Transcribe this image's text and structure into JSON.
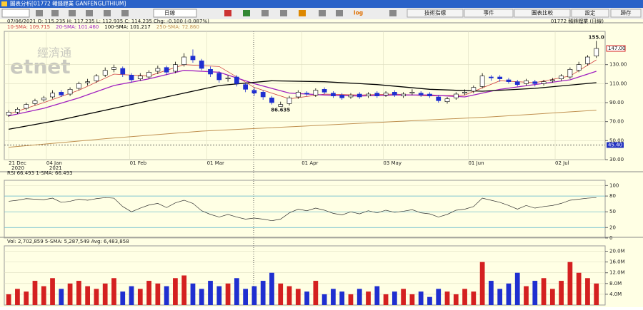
{
  "window": {
    "title": "圖表分析[01772 贛鋒鋰業 GANFENGLITHIUM]"
  },
  "toolbar": {
    "interval": "日線",
    "log": "log",
    "buttons": [
      "技術指標",
      "事件",
      "圖表比較",
      "設定",
      "歸存"
    ]
  },
  "watermark": [
    "經濟通",
    "etnet"
  ],
  "chart_data": [
    {
      "type": "candlestick",
      "info": "07/06/2021  O: 115.235  H: 117.235  L: 112.935  C: 114.235  Chg: -0.100 (-0.087%)",
      "symbol": "01772 贛鋒鋰業 (日線)",
      "down_color": "#1f2fd0",
      "up_color": "#ffffff",
      "xlim": [
        -0.5,
        68
      ],
      "ylim": [
        30,
        165
      ],
      "yticks": [
        {
          "value": 30,
          "label": "30.00"
        },
        {
          "value": 50,
          "label": "50.00"
        },
        {
          "value": 70,
          "label": "70.00"
        },
        {
          "value": 90,
          "label": "90.00"
        },
        {
          "value": 110,
          "label": "110.00"
        },
        {
          "value": 130,
          "label": "130.00"
        }
      ],
      "xticks": [
        {
          "value": 0,
          "label": "21 Dec"
        },
        {
          "value": 4.3,
          "label": "04 Jan"
        },
        {
          "value": 13.8,
          "label": "01 Feb"
        },
        {
          "value": 22.6,
          "label": "01 Mar"
        },
        {
          "value": 33.4,
          "label": "01 Apr"
        },
        {
          "value": 42.7,
          "label": "03 May"
        },
        {
          "value": 52.4,
          "label": "01 Jun"
        },
        {
          "value": 62.3,
          "label": "02 Jul"
        }
      ],
      "year_labels": [
        {
          "value": 0,
          "label": "2020"
        },
        {
          "value": 4.3,
          "label": "2021"
        }
      ],
      "last_price": {
        "value": 147,
        "label": "147.00"
      },
      "ref_line": {
        "value": 45.4,
        "label": "45.40"
      },
      "annotations": [
        {
          "x": 67,
          "value": 155,
          "label": "155.0"
        },
        {
          "x": 31,
          "value": 86.635,
          "label": "86.635"
        }
      ],
      "open": [
        77,
        80,
        84,
        89,
        93,
        96,
        101,
        99,
        105,
        111,
        113,
        119,
        125,
        126,
        119,
        115,
        117,
        123,
        127,
        123,
        130,
        139,
        134,
        125,
        121,
        115,
        117,
        109,
        103,
        101,
        95,
        86,
        89,
        96,
        100,
        98,
        104,
        100,
        98,
        96,
        99,
        97,
        100,
        98,
        101,
        97,
        100,
        100,
        99,
        96,
        91,
        95,
        100,
        102,
        107,
        117,
        117,
        114,
        112,
        110,
        112,
        110,
        113,
        115,
        117,
        124,
        131,
        139
      ],
      "high": [
        82,
        85,
        90,
        94,
        97,
        103,
        103,
        106,
        112,
        115,
        120,
        127,
        130,
        128,
        121,
        121,
        124,
        129,
        129,
        133,
        142,
        146,
        136,
        128,
        123,
        119,
        119,
        111,
        106,
        103,
        97,
        91,
        97,
        103,
        102,
        105,
        106,
        102,
        100,
        100,
        101,
        101,
        102,
        102,
        103,
        101,
        104,
        102,
        101,
        98,
        96,
        101,
        104,
        108,
        121,
        119,
        119,
        116,
        114,
        115,
        114,
        114,
        116,
        120,
        127,
        133,
        140,
        155
      ],
      "low": [
        75,
        78,
        82,
        87,
        91,
        94,
        96,
        97,
        103,
        108,
        111,
        117,
        122,
        117,
        111,
        113,
        115,
        120,
        119,
        121,
        128,
        132,
        124,
        117,
        111,
        112,
        107,
        101,
        97,
        93,
        88,
        86.635,
        87,
        94,
        97,
        96,
        99,
        95,
        93,
        94,
        94,
        95,
        95,
        96,
        96,
        95,
        98,
        96,
        95,
        90,
        89,
        93,
        98,
        100,
        105,
        113,
        112,
        110,
        107,
        108,
        107,
        108,
        111,
        113,
        115,
        122,
        129,
        137
      ],
      "close": [
        80,
        83,
        88,
        92,
        95,
        100,
        98,
        104,
        110,
        112,
        118,
        124,
        127,
        120,
        114,
        118,
        122,
        126,
        122,
        130,
        138,
        135,
        126,
        120,
        114,
        116,
        110,
        104,
        100,
        96,
        90,
        88,
        95,
        101,
        99,
        103,
        101,
        97,
        95,
        98,
        96,
        99,
        97,
        100,
        98,
        99,
        101,
        98,
        97,
        92,
        94,
        99,
        101,
        106,
        118,
        116,
        115,
        112,
        109,
        113,
        110,
        112,
        114,
        118,
        125,
        130,
        138,
        147
      ],
      "lines": [
        {
          "name": "10-SMA: 109.715",
          "color": "#d04040",
          "width": 0.8,
          "x": [
            0,
            4,
            8,
            12,
            16,
            20,
            24,
            28,
            32,
            36,
            40,
            44,
            48,
            52,
            56,
            60,
            64,
            67
          ],
          "values": [
            78,
            90,
            103,
            120,
            118,
            130,
            128,
            106,
            94,
            99,
            98,
            99,
            97,
            98,
            113,
            111,
            118,
            135
          ]
        },
        {
          "name": "20-SMA: 101.460",
          "color": "#a020c0",
          "width": 1.3,
          "x": [
            0,
            4,
            8,
            12,
            16,
            20,
            24,
            28,
            32,
            36,
            40,
            44,
            48,
            52,
            56,
            60,
            64,
            67
          ],
          "values": [
            76,
            84,
            95,
            108,
            115,
            124,
            122,
            110,
            100,
            98,
            97,
            98,
            98,
            96,
            104,
            109,
            114,
            123
          ]
        },
        {
          "name": "100-SMA: 101.217",
          "color": "#000000",
          "width": 1.3,
          "x": [
            0,
            6,
            12,
            18,
            24,
            30,
            36,
            42,
            48,
            54,
            60,
            67
          ],
          "values": [
            62,
            72,
            84,
            96,
            108,
            113,
            112,
            109,
            104,
            102,
            105,
            111
          ]
        },
        {
          "name": "250-SMA: 72.860",
          "color": "#c09050",
          "width": 1,
          "x": [
            0,
            11,
            22,
            33,
            44,
            55,
            67
          ],
          "values": [
            43,
            52,
            60,
            65,
            70,
            75,
            82
          ]
        }
      ]
    },
    {
      "type": "line",
      "info": "RSI 66.493  1-SMA: 66.493",
      "color": "#303030",
      "xlim": [
        -0.5,
        68
      ],
      "ylim": [
        0,
        110
      ],
      "yticks": [
        0,
        20,
        50,
        80,
        100
      ],
      "guides": [
        20,
        50,
        80
      ],
      "values": [
        70,
        72,
        75,
        74,
        73,
        76,
        68,
        70,
        74,
        72,
        75,
        77,
        76,
        60,
        50,
        57,
        63,
        66,
        58,
        67,
        72,
        66,
        52,
        45,
        40,
        45,
        40,
        36,
        38,
        36,
        33,
        36,
        48,
        55,
        52,
        57,
        53,
        47,
        44,
        50,
        46,
        52,
        48,
        53,
        49,
        51,
        54,
        48,
        46,
        40,
        45,
        53,
        55,
        60,
        76,
        72,
        68,
        62,
        55,
        62,
        57,
        60,
        62,
        66,
        72,
        74,
        76,
        77
      ]
    },
    {
      "type": "bar",
      "info": "Vol: 2,702,859  5-SMA: 5,287,549  Avg: 6,483,858",
      "up_color": "#d42020",
      "down_color": "#1f2fd0",
      "xlim": [
        -0.5,
        68
      ],
      "ylim": [
        0,
        22000000
      ],
      "yticks": [
        {
          "value": 4000000,
          "label": "4.0M"
        },
        {
          "value": 8000000,
          "label": "8.0M"
        },
        {
          "value": 12000000,
          "label": "12.0M"
        },
        {
          "value": 16000000,
          "label": "16.0M"
        },
        {
          "value": 20000000,
          "label": "20.0M"
        }
      ],
      "values": [
        4000000,
        6000000,
        5000000,
        9000000,
        7000000,
        10000000,
        6000000,
        8000000,
        9000000,
        7000000,
        6000000,
        8000000,
        10000000,
        5000000,
        7000000,
        6000000,
        9000000,
        8000000,
        7000000,
        10000000,
        11000000,
        8000000,
        6000000,
        9000000,
        7000000,
        8000000,
        10000000,
        6000000,
        7000000,
        9000000,
        12000000,
        8000000,
        7000000,
        6000000,
        5000000,
        9000000,
        4000000,
        6000000,
        5000000,
        4000000,
        6000000,
        5000000,
        7000000,
        4000000,
        5000000,
        6000000,
        4000000,
        5000000,
        3000000,
        6000000,
        5000000,
        4000000,
        6000000,
        5000000,
        16000000,
        9000000,
        6000000,
        8000000,
        12000000,
        7000000,
        9000000,
        10000000,
        6000000,
        9000000,
        16000000,
        12000000,
        10000000,
        8000000
      ]
    }
  ]
}
